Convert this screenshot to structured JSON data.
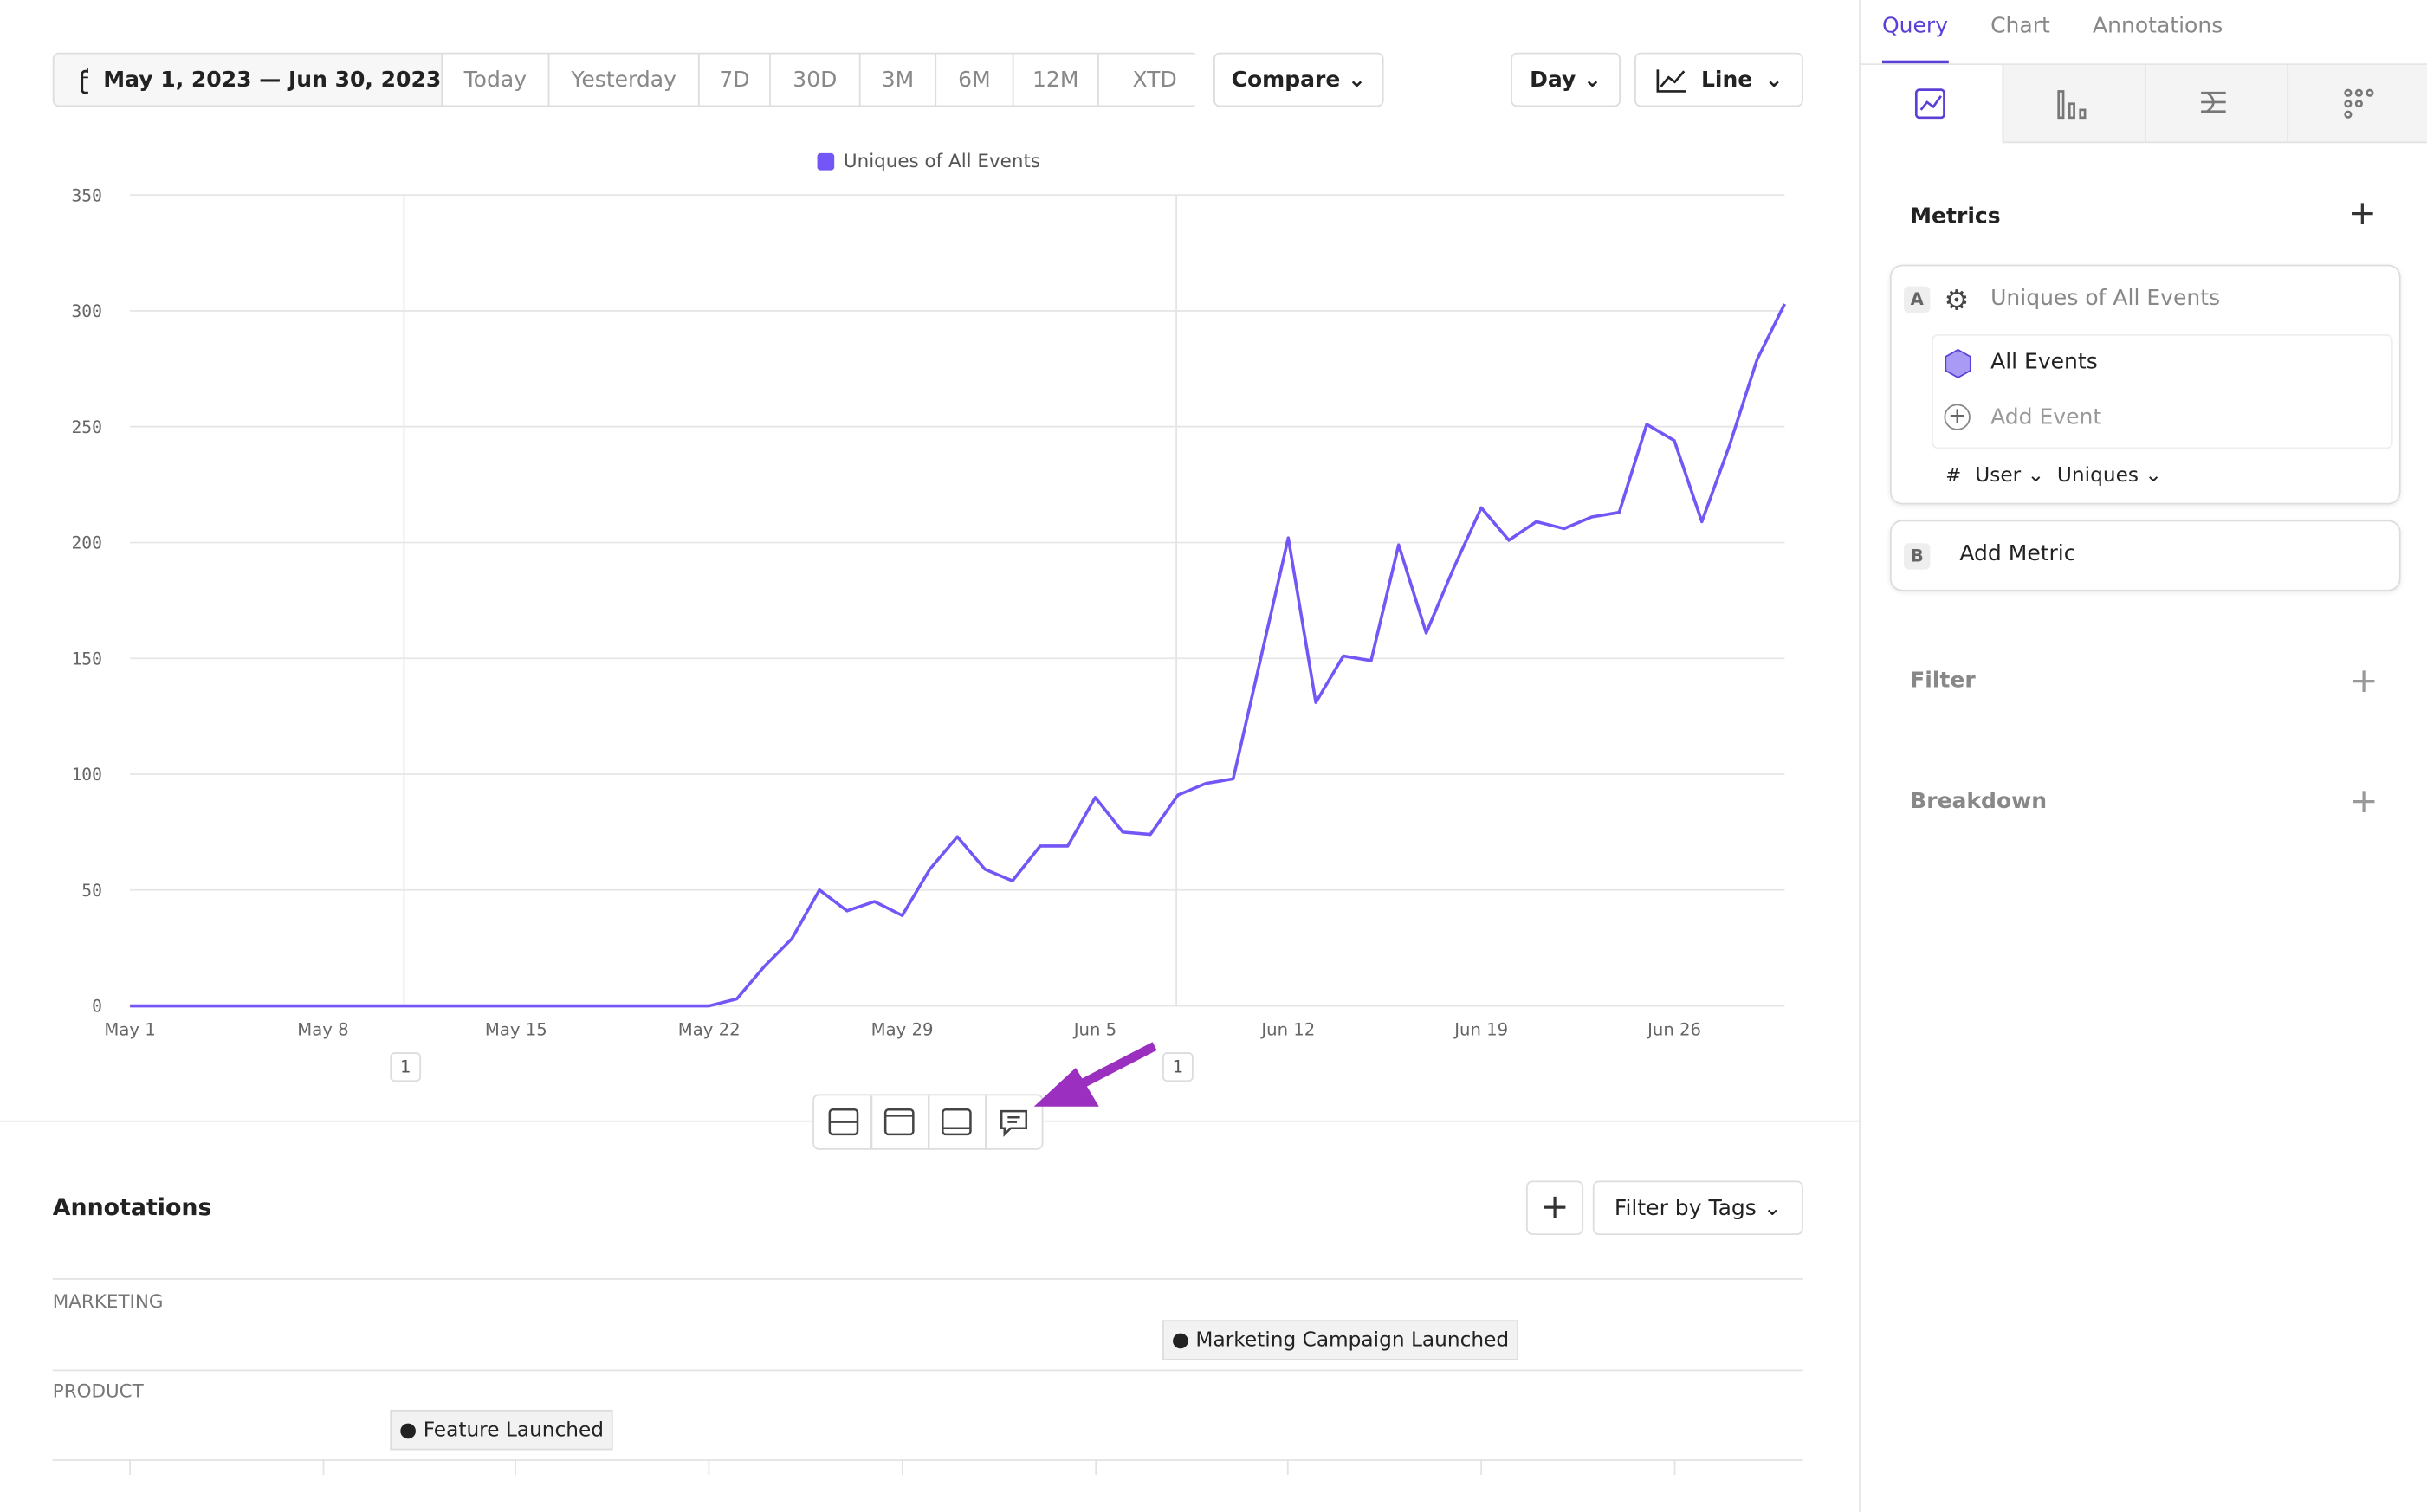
{
  "toolbar": {
    "date_range": "May 1, 2023 — Jun 30, 2023",
    "ranges": [
      "Today",
      "Yesterday",
      "7D",
      "30D",
      "3M",
      "6M",
      "12M",
      "XTD"
    ],
    "compare": "Compare",
    "interval": "Day",
    "chart_type": "Line"
  },
  "chart_data": {
    "type": "line",
    "categories": [
      "May 1",
      null,
      null,
      null,
      null,
      null,
      null,
      "May 8",
      null,
      null,
      null,
      null,
      null,
      null,
      "May 15",
      null,
      null,
      null,
      null,
      null,
      null,
      "May 22",
      null,
      null,
      null,
      null,
      null,
      null,
      "May 29",
      null,
      null,
      null,
      null,
      null,
      null,
      "Jun 5",
      null,
      null,
      null,
      null,
      null,
      null,
      "Jun 12",
      null,
      null,
      null,
      null,
      null,
      null,
      "Jun 19",
      null,
      null,
      null,
      null,
      null,
      null,
      "Jun 26",
      null,
      null,
      null,
      null
    ],
    "series": [
      {
        "name": "Uniques of All Events",
        "color": "#7356f5",
        "values": [
          0,
          0,
          0,
          0,
          0,
          0,
          0,
          0,
          0,
          0,
          0,
          0,
          0,
          0,
          0,
          0,
          0,
          0,
          0,
          0,
          0,
          0,
          3,
          17,
          29,
          50,
          41,
          45,
          39,
          59,
          73,
          59,
          54,
          69,
          69,
          90,
          75,
          74,
          91,
          96,
          98,
          150,
          202,
          131,
          151,
          149,
          199,
          161,
          189,
          215,
          201,
          209,
          206,
          211,
          213,
          251,
          244,
          209,
          242,
          279,
          303
        ]
      }
    ],
    "ylim": [
      0,
      350
    ],
    "yticks": [
      0,
      50,
      100,
      150,
      200,
      250,
      300,
      350
    ],
    "grid": true
  },
  "annotation_markers": [
    "1",
    "1"
  ],
  "annotations": {
    "title": "Annotations",
    "filter": "Filter by Tags",
    "groups": [
      {
        "name": "MARKETING",
        "items": [
          "Marketing Campaign Launched"
        ]
      },
      {
        "name": "PRODUCT",
        "items": [
          "Feature Launched"
        ]
      }
    ]
  },
  "sidebar": {
    "tabs": [
      "Query",
      "Chart",
      "Annotations"
    ],
    "metrics_title": "Metrics",
    "metric": {
      "letter": "A",
      "name": "Uniques of All Events",
      "events": [
        "All Events"
      ],
      "add_event": "Add Event",
      "prefix": "#",
      "property": "User",
      "aggregation": "Uniques"
    },
    "add_metric": {
      "letter": "B",
      "label": "Add Metric"
    },
    "filter": "Filter",
    "breakdown": "Breakdown"
  }
}
